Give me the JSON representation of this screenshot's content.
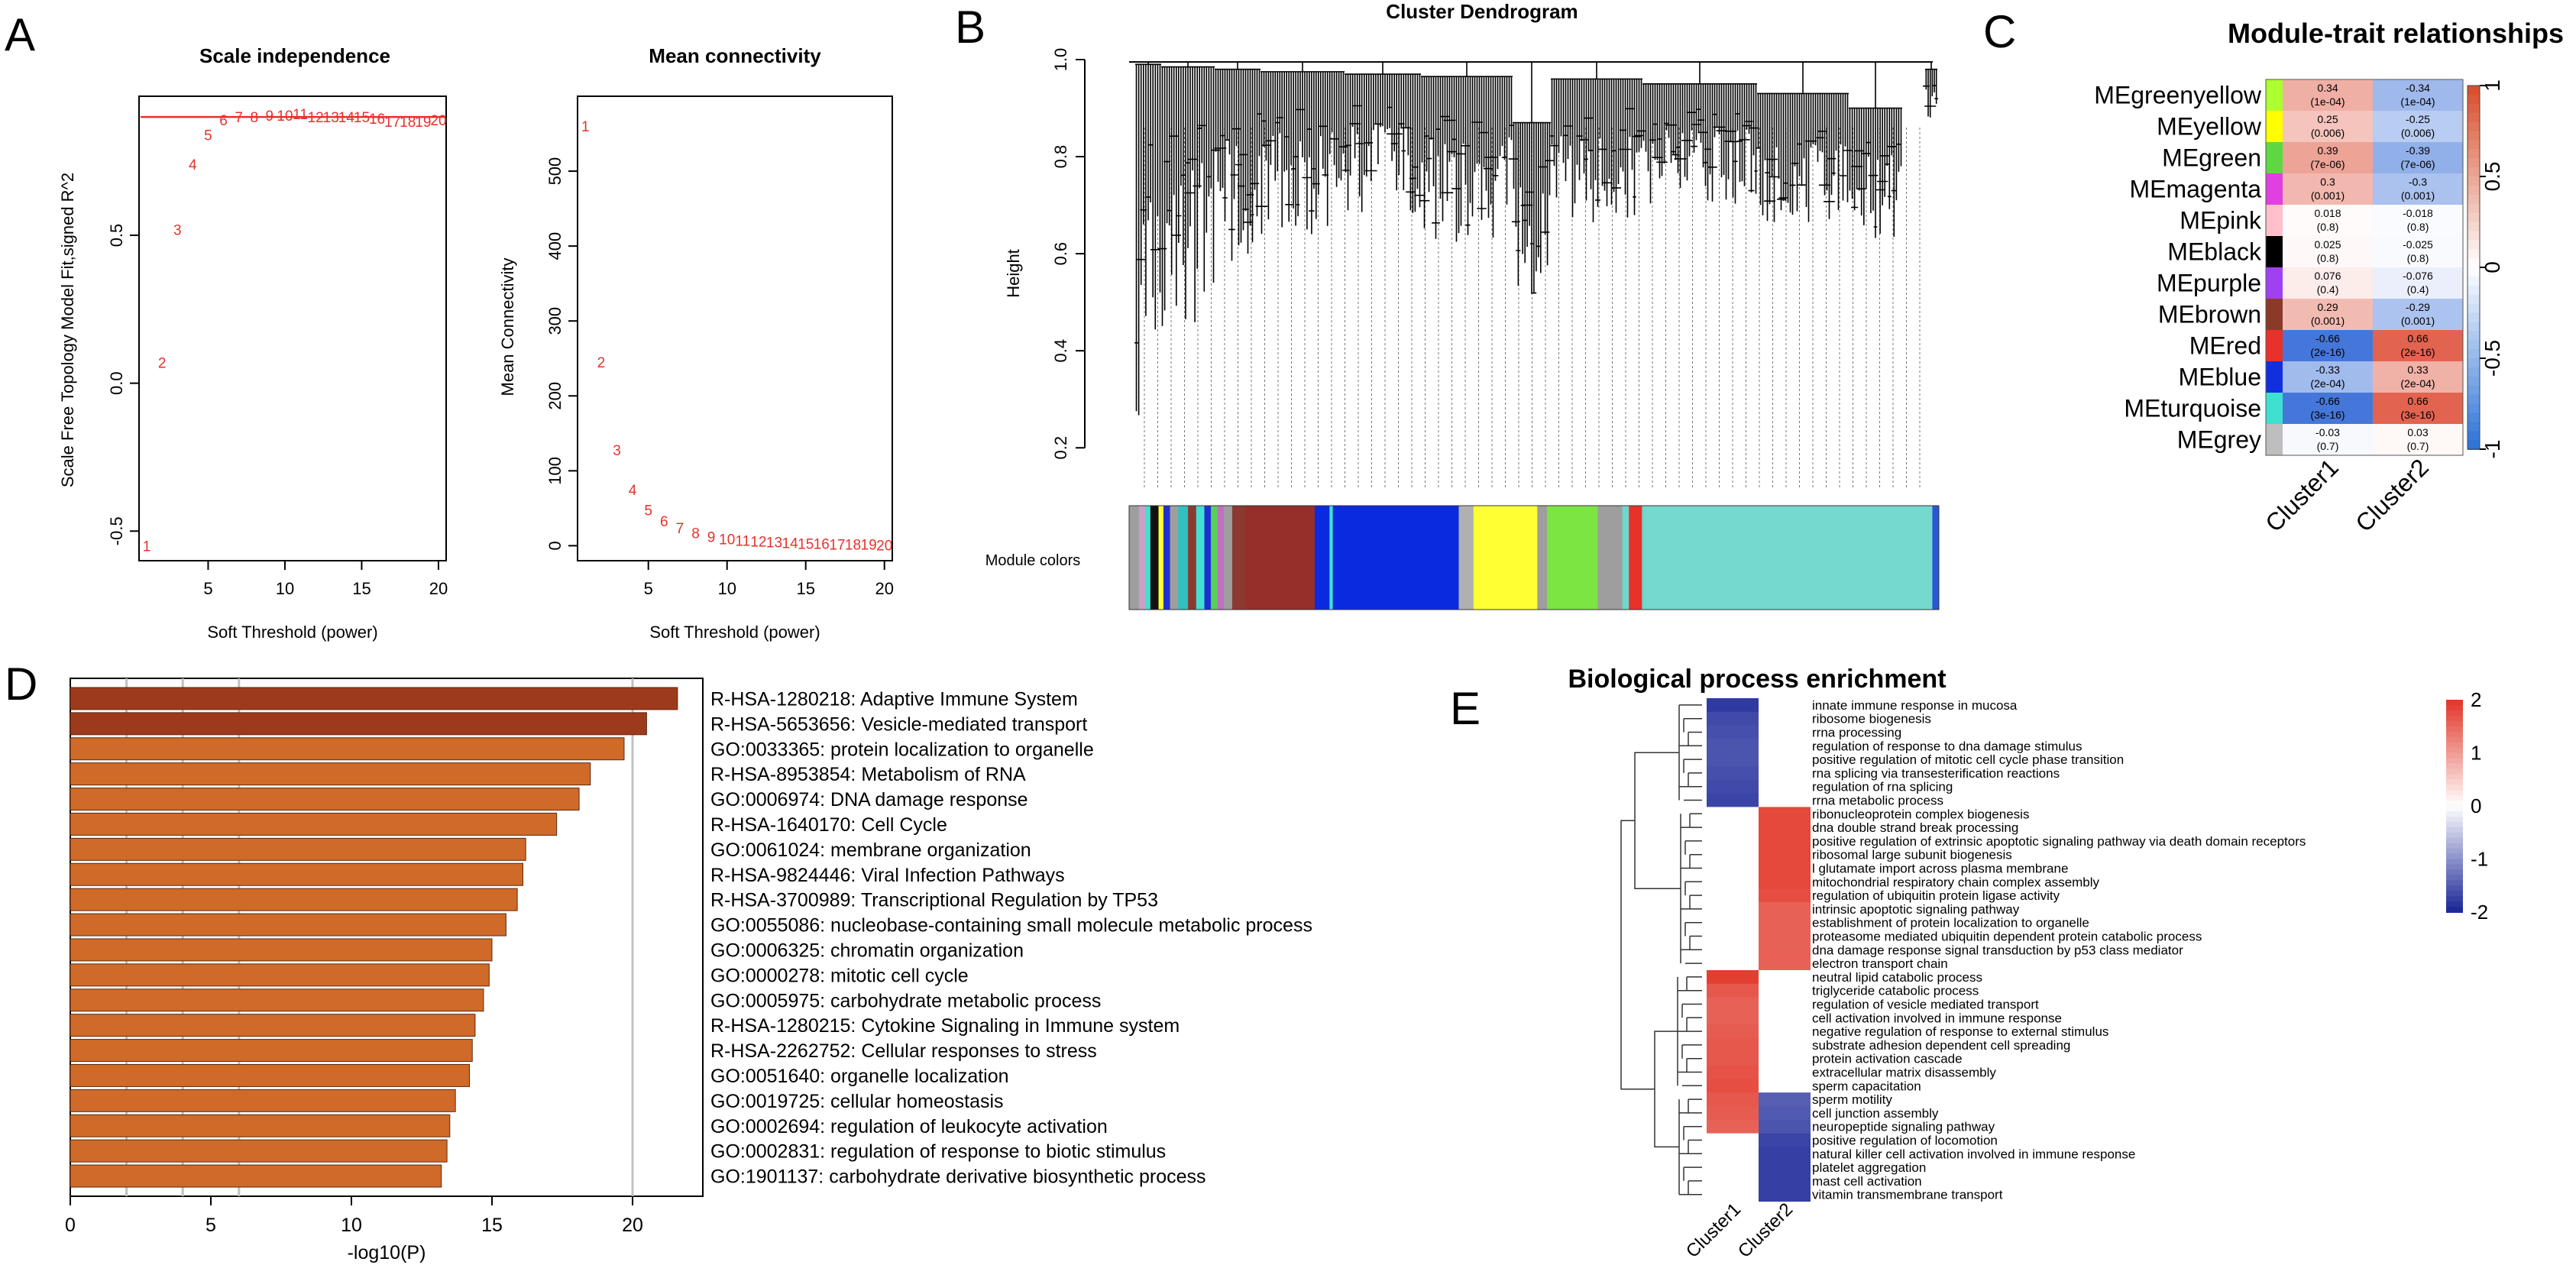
{
  "panel_labels": {
    "a": "A",
    "b": "B",
    "c": "C",
    "d": "D",
    "e": "E"
  },
  "palette": {
    "red_series": "#e8312b",
    "bar_fill": "#d06a28",
    "bar_fill_top": "#9e3a1c",
    "heat_high": "#e23a2c",
    "heat_low": "#1f2a9a",
    "dendro": "#000000",
    "grid": "#c0c0c0"
  },
  "chart_data": [
    {
      "id": "scale_independence",
      "type": "scatter",
      "title": "Scale independence",
      "xlabel": "Soft Threshold (power)",
      "ylabel": "Scale Free Topology Model Fit,signed R^2",
      "xlim": [
        0.5,
        20.5
      ],
      "ylim": [
        -0.6,
        0.97
      ],
      "xticks": [
        5,
        10,
        15,
        20
      ],
      "yticks": [
        -0.5,
        0.0,
        0.5
      ],
      "ytick_labels": [
        "-0.5",
        "0.0",
        "0.5"
      ],
      "threshold": 0.9,
      "points": [
        {
          "x": 1,
          "y": -0.55,
          "label": "1"
        },
        {
          "x": 2,
          "y": 0.07,
          "label": "2"
        },
        {
          "x": 3,
          "y": 0.52,
          "label": "3"
        },
        {
          "x": 4,
          "y": 0.74,
          "label": "4"
        },
        {
          "x": 5,
          "y": 0.84,
          "label": "5"
        },
        {
          "x": 6,
          "y": 0.89,
          "label": "6"
        },
        {
          "x": 7,
          "y": 0.9,
          "label": "7"
        },
        {
          "x": 8,
          "y": 0.9,
          "label": "8"
        },
        {
          "x": 9,
          "y": 0.905,
          "label": "9"
        },
        {
          "x": 10,
          "y": 0.905,
          "label": "10"
        },
        {
          "x": 11,
          "y": 0.91,
          "label": "11"
        },
        {
          "x": 12,
          "y": 0.9,
          "label": "12"
        },
        {
          "x": 13,
          "y": 0.9,
          "label": "13"
        },
        {
          "x": 14,
          "y": 0.9,
          "label": "14"
        },
        {
          "x": 15,
          "y": 0.9,
          "label": "15"
        },
        {
          "x": 16,
          "y": 0.895,
          "label": "16"
        },
        {
          "x": 17,
          "y": 0.885,
          "label": "17"
        },
        {
          "x": 18,
          "y": 0.885,
          "label": "18"
        },
        {
          "x": 19,
          "y": 0.885,
          "label": "19"
        },
        {
          "x": 20,
          "y": 0.89,
          "label": "20"
        }
      ]
    },
    {
      "id": "mean_connectivity",
      "type": "scatter",
      "title": "Mean connectivity",
      "xlabel": "Soft Threshold (power)",
      "ylabel": "Mean Connectivity",
      "xlim": [
        0.5,
        20.5
      ],
      "ylim": [
        -20,
        600
      ],
      "xticks": [
        5,
        10,
        15,
        20
      ],
      "yticks": [
        0,
        100,
        200,
        300,
        400,
        500
      ],
      "ytick_labels": [
        "0",
        "100",
        "200",
        "300",
        "400",
        "500"
      ],
      "points": [
        {
          "x": 1,
          "y": 560,
          "label": "1"
        },
        {
          "x": 2,
          "y": 245,
          "label": "2"
        },
        {
          "x": 3,
          "y": 128,
          "label": "3"
        },
        {
          "x": 4,
          "y": 75,
          "label": "4"
        },
        {
          "x": 5,
          "y": 48,
          "label": "5"
        },
        {
          "x": 6,
          "y": 33,
          "label": "6"
        },
        {
          "x": 7,
          "y": 24,
          "label": "7"
        },
        {
          "x": 8,
          "y": 17,
          "label": "8"
        },
        {
          "x": 9,
          "y": 12,
          "label": "9"
        },
        {
          "x": 10,
          "y": 9,
          "label": "10"
        },
        {
          "x": 11,
          "y": 7,
          "label": "11"
        },
        {
          "x": 12,
          "y": 6,
          "label": "12"
        },
        {
          "x": 13,
          "y": 5,
          "label": "13"
        },
        {
          "x": 14,
          "y": 4,
          "label": "14"
        },
        {
          "x": 15,
          "y": 3,
          "label": "15"
        },
        {
          "x": 16,
          "y": 3,
          "label": "16"
        },
        {
          "x": 17,
          "y": 2,
          "label": "17"
        },
        {
          "x": 18,
          "y": 2,
          "label": "18"
        },
        {
          "x": 19,
          "y": 2,
          "label": "19"
        },
        {
          "x": 20,
          "y": 1,
          "label": "20"
        }
      ]
    },
    {
      "id": "cluster_dendrogram",
      "type": "dendrogram",
      "title": "Cluster Dendrogram",
      "ylabel": "Height",
      "ylim": [
        0.15,
        1.0
      ],
      "yticks": [
        0.2,
        0.4,
        0.6,
        0.8,
        1.0
      ],
      "ytick_labels": [
        "0.2",
        "0.4",
        "0.6",
        "0.8",
        "1.0"
      ],
      "color_bar_label": "Module colors",
      "module_color_segments": [
        {
          "color": "#9e9e9e",
          "share": 0.012
        },
        {
          "color": "#c9a0c8",
          "share": 0.008
        },
        {
          "color": "#40e0d0",
          "share": 0.006
        },
        {
          "color": "#111111",
          "share": 0.01
        },
        {
          "color": "#ffff33",
          "share": 0.006
        },
        {
          "color": "#2030d0",
          "share": 0.008
        },
        {
          "color": "#9e9e9e",
          "share": 0.01
        },
        {
          "color": "#30c0c0",
          "share": 0.012
        },
        {
          "color": "#8a3a30",
          "share": 0.01
        },
        {
          "color": "#40e0d0",
          "share": 0.01
        },
        {
          "color": "#2030d0",
          "share": 0.008
        },
        {
          "color": "#5ad05a",
          "share": 0.008
        },
        {
          "color": "#c070c0",
          "share": 0.008
        },
        {
          "color": "#9e9e9e",
          "share": 0.01
        },
        {
          "color": "#8a3a30",
          "share": 0.016
        },
        {
          "color": "#962e2a",
          "share": 0.085
        },
        {
          "color": "#0a2ae0",
          "share": 0.018
        },
        {
          "color": "#40e0d0",
          "share": 0.004
        },
        {
          "color": "#0a2ae0",
          "share": 0.154
        },
        {
          "color": "#b0b0b0",
          "share": 0.018
        },
        {
          "color": "#ffff33",
          "share": 0.078
        },
        {
          "color": "#9e9e9e",
          "share": 0.012
        },
        {
          "color": "#7de542",
          "share": 0.062
        },
        {
          "color": "#9e9e9e",
          "share": 0.03
        },
        {
          "color": "#6ed8cc",
          "share": 0.008
        },
        {
          "color": "#e8312b",
          "share": 0.016
        },
        {
          "color": "#6ed8cc",
          "share": 0.004
        },
        {
          "color": "#76d9cf",
          "share": 0.351
        },
        {
          "color": "#2a57d6",
          "share": 0.008
        }
      ]
    },
    {
      "id": "module_trait",
      "type": "heatmap",
      "title": "Module-trait relationships",
      "columns": [
        "Cluster1",
        "Cluster2"
      ],
      "scale": [
        "1",
        "0.5",
        "0",
        "-0.5",
        "-1"
      ],
      "rows": [
        {
          "module": "MEgreenyellow",
          "color": "#adff2f",
          "c1": 0.34,
          "p1": "(1e-04)",
          "c2": -0.34,
          "p2": "(1e-04)"
        },
        {
          "module": "MEyellow",
          "color": "#ffff00",
          "c1": 0.25,
          "p1": "(0.006)",
          "c2": -0.25,
          "p2": "(0.006)"
        },
        {
          "module": "MEgreen",
          "color": "#5ed842",
          "c1": 0.39,
          "p1": "(7e-06)",
          "c2": -0.39,
          "p2": "(7e-06)"
        },
        {
          "module": "MEmagenta",
          "color": "#e040e0",
          "c1": 0.3,
          "p1": "(0.001)",
          "c2": -0.3,
          "p2": "(0.001)"
        },
        {
          "module": "MEpink",
          "color": "#ffc0cb",
          "c1": 0.018,
          "p1": "(0.8)",
          "c2": -0.018,
          "p2": "(0.8)"
        },
        {
          "module": "MEblack",
          "color": "#000000",
          "c1": 0.025,
          "p1": "(0.8)",
          "c2": -0.025,
          "p2": "(0.8)"
        },
        {
          "module": "MEpurple",
          "color": "#a040f0",
          "c1": 0.076,
          "p1": "(0.4)",
          "c2": -0.076,
          "p2": "(0.4)"
        },
        {
          "module": "MEbrown",
          "color": "#8b3a2a",
          "c1": 0.29,
          "p1": "(0.001)",
          "c2": -0.29,
          "p2": "(0.001)"
        },
        {
          "module": "MEred",
          "color": "#e8312b",
          "c1": -0.66,
          "p1": "(2e-16)",
          "c2": 0.66,
          "p2": "(2e-16)"
        },
        {
          "module": "MEblue",
          "color": "#1030e0",
          "c1": -0.33,
          "p1": "(2e-04)",
          "c2": 0.33,
          "p2": "(2e-04)"
        },
        {
          "module": "MEturquoise",
          "color": "#40e0d0",
          "c1": -0.66,
          "p1": "(3e-16)",
          "c2": 0.66,
          "p2": "(3e-16)"
        },
        {
          "module": "MEgrey",
          "color": "#bebebe",
          "c1": -0.03,
          "p1": "(0.7)",
          "c2": 0.03,
          "p2": "(0.7)"
        }
      ]
    },
    {
      "id": "enrichment_bar",
      "type": "bar",
      "orientation": "horizontal",
      "xlabel": "-log10(P)",
      "xlim": [
        0,
        22.5
      ],
      "xticks": [
        0,
        5,
        10,
        15,
        20
      ],
      "gridlines": [
        2,
        4,
        6,
        20
      ],
      "categories": [
        "R-HSA-1280218: Adaptive Immune System",
        "R-HSA-5653656: Vesicle-mediated transport",
        "GO:0033365: protein localization to organelle",
        "R-HSA-8953854: Metabolism of RNA",
        "GO:0006974: DNA damage response",
        "R-HSA-1640170: Cell Cycle",
        "GO:0061024: membrane organization",
        "R-HSA-9824446: Viral Infection Pathways",
        "R-HSA-3700989: Transcriptional Regulation by TP53",
        "GO:0055086: nucleobase-containing small molecule metabolic process",
        "GO:0006325: chromatin organization",
        "GO:0000278: mitotic cell cycle",
        "GO:0005975: carbohydrate metabolic process",
        "R-HSA-1280215: Cytokine Signaling in Immune system",
        "R-HSA-2262752: Cellular responses to stress",
        "GO:0051640: organelle localization",
        "GO:0019725: cellular homeostasis",
        "GO:0002694: regulation of leukocyte activation",
        "GO:0002831: regulation of response to biotic stimulus",
        "GO:1901137: carbohydrate derivative biosynthetic process"
      ],
      "values": [
        21.6,
        20.5,
        19.7,
        18.5,
        18.1,
        17.3,
        16.2,
        16.1,
        15.9,
        15.5,
        15.0,
        14.9,
        14.7,
        14.4,
        14.3,
        14.2,
        13.7,
        13.5,
        13.4,
        13.2
      ]
    },
    {
      "id": "bp_enrichment",
      "type": "heatmap",
      "title": "Biological process enrichment",
      "columns": [
        "Cluster1",
        "Cluster2"
      ],
      "scale": [
        "2",
        "1",
        "0",
        "-1",
        "-2"
      ],
      "terms": [
        "innate immune response in mucosa",
        "ribosome biogenesis",
        "rrna processing",
        "regulation of response to dna damage stimulus",
        "positive regulation of mitotic cell cycle phase transition",
        "rna splicing via transesterification reactions",
        "regulation of rna splicing",
        "rrna metabolic process",
        "ribonucleoprotein complex biogenesis",
        "dna double strand break processing",
        "positive regulation of extrinsic apoptotic signaling pathway via death domain receptors",
        "ribosomal large subunit biogenesis",
        "l glutamate import across plasma membrane",
        "mitochondrial respiratory chain complex assembly",
        "regulation of ubiquitin protein ligase activity",
        "intrinsic apoptotic signaling pathway",
        "establishment of protein localization to organelle",
        "proteasome mediated ubiquitin dependent protein catabolic process",
        "dna damage response signal transduction by p53 class mediator",
        "electron transport chain",
        "neutral lipid catabolic process",
        "triglyceride catabolic process",
        "regulation of vesicle mediated transport",
        "cell activation involved in immune response",
        "negative regulation of response to external stimulus",
        "substrate adhesion dependent cell spreading",
        "protein activation cascade",
        "extracellular matrix disassembly",
        "sperm capacitation",
        "sperm motility",
        "cell junction assembly",
        "neuropeptide signaling pathway",
        "positive regulation of locomotion",
        "natural killer cell activation involved in immune response",
        "platelet aggregation",
        "mast cell activation",
        "vitamin transmembrane transport"
      ],
      "cluster1": [
        -1.85,
        -1.7,
        -1.65,
        -1.6,
        -1.6,
        -1.65,
        -1.7,
        -1.75,
        0,
        0,
        0,
        0,
        0,
        0,
        0,
        0,
        0,
        0,
        0,
        0,
        1.95,
        1.7,
        1.6,
        1.6,
        1.65,
        1.7,
        1.7,
        1.75,
        1.8,
        1.7,
        1.65,
        1.6,
        0,
        0,
        0,
        0,
        0
      ],
      "cluster2": [
        0,
        0,
        0,
        0,
        0,
        0,
        0,
        0,
        1.85,
        1.85,
        1.85,
        1.85,
        1.85,
        1.85,
        1.8,
        1.6,
        1.6,
        1.6,
        1.6,
        1.6,
        0,
        0,
        0,
        0,
        0,
        0,
        0,
        0,
        0,
        -1.5,
        -1.55,
        -1.6,
        -1.75,
        -1.8,
        -1.8,
        -1.8,
        -1.8
      ]
    }
  ]
}
